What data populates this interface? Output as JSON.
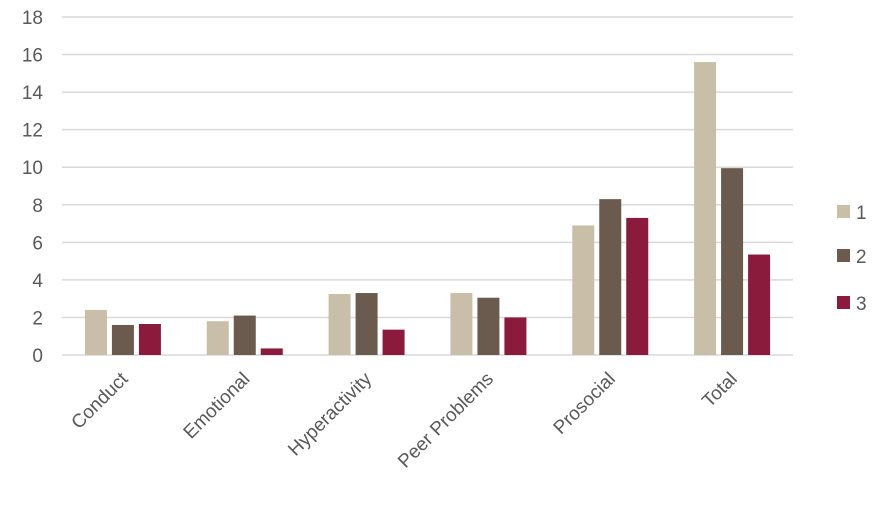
{
  "chart_data": {
    "type": "bar",
    "categories": [
      "Conduct",
      "Emotional",
      "Hyperactivity",
      "Peer Problems",
      "Prosocial",
      "Total"
    ],
    "series": [
      {
        "name": "1",
        "color": "#c9bfa8",
        "values": [
          2.4,
          1.8,
          3.25,
          3.3,
          6.9,
          15.6
        ]
      },
      {
        "name": "2",
        "color": "#6b5b4e",
        "values": [
          1.6,
          2.1,
          3.3,
          3.05,
          8.3,
          9.95
        ]
      },
      {
        "name": "3",
        "color": "#8b1a3c",
        "values": [
          1.65,
          0.35,
          1.35,
          2.0,
          7.3,
          5.35
        ]
      }
    ],
    "ylim": [
      0,
      18
    ],
    "yticks": [
      0,
      2,
      4,
      6,
      8,
      10,
      12,
      14,
      16,
      18
    ],
    "grid": true,
    "legend_position": "right",
    "gridline_color": "#d9d9d9",
    "title": "",
    "xlabel": "",
    "ylabel": ""
  }
}
